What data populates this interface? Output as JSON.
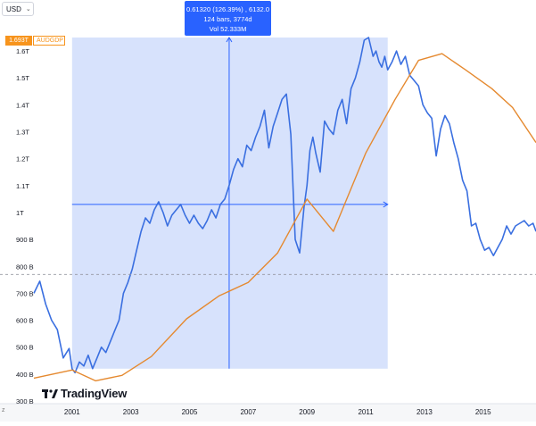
{
  "toolbar": {
    "currency": "USD"
  },
  "price_badge": {
    "value": "1.693T",
    "symbol": "AUDGDP"
  },
  "measure_tooltip": {
    "line1": "0.61320 (126.39%) , 6132.0",
    "line2": "124 bars, 3774d",
    "line3": "Vol 52.333M"
  },
  "logo": {
    "text": "TradingView"
  },
  "colors": {
    "blue_series": "#3a6fe0",
    "orange_series": "#e5892f",
    "selection_fill": "#c9d8fb",
    "measure_accent": "#2962ff"
  },
  "icons": {
    "currency_chevron": "chevron-down-icon",
    "timezone": "timezone-icon",
    "logo": "tradingview-logo-icon"
  },
  "chart_data": {
    "type": "line",
    "y_ticks": [
      "1.6T",
      "1.5T",
      "1.4T",
      "1.3T",
      "1.2T",
      "1.1T",
      "1T",
      "900 B",
      "800 B",
      "700 B",
      "600 B",
      "500 B",
      "400 B",
      "300 B"
    ],
    "y_tick_values": [
      1600,
      1500,
      1400,
      1300,
      1200,
      1100,
      1000,
      900,
      800,
      700,
      600,
      500,
      400,
      300
    ],
    "x_ticks": [
      "2001",
      "2003",
      "2005",
      "2007",
      "2009",
      "2011",
      "2013",
      "2015"
    ],
    "x_tick_values": [
      2001,
      2003,
      2005,
      2007,
      2009,
      2011,
      2013,
      2015
    ],
    "y_unit_note": "billions",
    "xlim": [
      1999.7,
      2016.8
    ],
    "ylim": [
      290,
      1650
    ],
    "series": [
      {
        "color": "#3a6fe0",
        "x": [
          1999.7,
          1999.9,
          2000.1,
          2000.3,
          2000.5,
          2000.7,
          2000.9,
          2001.0,
          2001.1,
          2001.25,
          2001.4,
          2001.55,
          2001.7,
          2001.85,
          2002.0,
          2002.15,
          2002.3,
          2002.45,
          2002.6,
          2002.75,
          2002.9,
          2003.05,
          2003.2,
          2003.35,
          2003.5,
          2003.65,
          2003.8,
          2003.95,
          2004.1,
          2004.25,
          2004.4,
          2004.55,
          2004.7,
          2004.85,
          2005.0,
          2005.15,
          2005.3,
          2005.45,
          2005.6,
          2005.75,
          2005.9,
          2006.05,
          2006.2,
          2006.35,
          2006.5,
          2006.65,
          2006.8,
          2006.95,
          2007.1,
          2007.25,
          2007.4,
          2007.55,
          2007.7,
          2007.85,
          2008.0,
          2008.15,
          2008.3,
          2008.45,
          2008.6,
          2008.75,
          2008.9,
          2009.0,
          2009.1,
          2009.2,
          2009.3,
          2009.45,
          2009.6,
          2009.75,
          2009.9,
          2010.05,
          2010.2,
          2010.35,
          2010.5,
          2010.65,
          2010.8,
          2010.95,
          2011.1,
          2011.25,
          2011.35,
          2011.45,
          2011.55,
          2011.65,
          2011.75,
          2011.9,
          2012.05,
          2012.2,
          2012.35,
          2012.5,
          2012.65,
          2012.8,
          2012.95,
          2013.1,
          2013.25,
          2013.4,
          2013.55,
          2013.7,
          2013.85,
          2014.0,
          2014.15,
          2014.3,
          2014.45,
          2014.6,
          2014.75,
          2014.9,
          2015.05,
          2015.2,
          2015.35,
          2015.5,
          2015.65,
          2015.8,
          2015.95,
          2016.1,
          2016.25,
          2016.4,
          2016.55,
          2016.7,
          2016.8
        ],
        "y": [
          700,
          745,
          660,
          600,
          565,
          460,
          495,
          420,
          405,
          445,
          430,
          470,
          420,
          460,
          500,
          480,
          520,
          560,
          600,
          700,
          740,
          790,
          860,
          930,
          980,
          960,
          1010,
          1040,
          1000,
          950,
          990,
          1010,
          1030,
          990,
          960,
          990,
          960,
          940,
          970,
          1010,
          980,
          1030,
          1050,
          1100,
          1160,
          1200,
          1170,
          1250,
          1230,
          1280,
          1320,
          1380,
          1240,
          1320,
          1370,
          1420,
          1440,
          1290,
          900,
          850,
          1020,
          1100,
          1230,
          1280,
          1220,
          1150,
          1340,
          1310,
          1290,
          1380,
          1420,
          1330,
          1460,
          1500,
          1560,
          1640,
          1650,
          1580,
          1600,
          1560,
          1540,
          1580,
          1530,
          1560,
          1600,
          1550,
          1580,
          1510,
          1490,
          1470,
          1400,
          1370,
          1350,
          1210,
          1310,
          1360,
          1330,
          1260,
          1200,
          1120,
          1080,
          950,
          960,
          900,
          860,
          870,
          840,
          870,
          900,
          950,
          920,
          950,
          960,
          970,
          950,
          960,
          930
        ]
      },
      {
        "color": "#e5892f",
        "x": [
          1999.7,
          2001.0,
          2001.8,
          2002.7,
          2003.7,
          2004.9,
          2006.0,
          2007.0,
          2008.0,
          2009.0,
          2009.9,
          2011.0,
          2012.0,
          2012.8,
          2013.6,
          2014.4,
          2015.3,
          2016.0,
          2016.8
        ],
        "y": [
          385,
          415,
          375,
          395,
          465,
          605,
          690,
          740,
          850,
          1050,
          930,
          1220,
          1420,
          1565,
          1590,
          1530,
          1460,
          1390,
          1260
        ]
      }
    ],
    "grid": false,
    "legend": "none"
  }
}
